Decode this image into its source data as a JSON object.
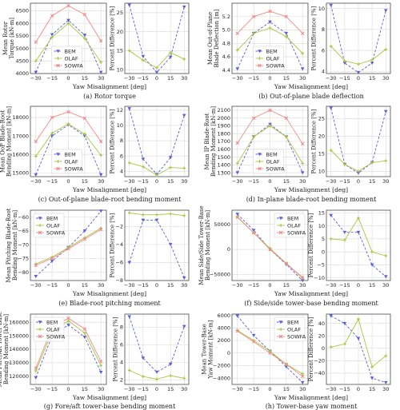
{
  "colors": {
    "BEM": "#5a5fd6",
    "OLAF": "#a9c640",
    "SOWFA": "#f08a8a",
    "grid": "#d9d9d9"
  },
  "series_names": [
    "BEM",
    "OLAF",
    "SOWFA"
  ],
  "x_label": "Yaw Misalignment [deg]",
  "chart_data": [
    {
      "id": "a",
      "caption": "(a) Rotor torque",
      "left": {
        "type": "line",
        "ylabel": [
          "Mean Rotor",
          "Torque [kN-m]"
        ],
        "x": [
          -30,
          -15,
          0,
          15,
          30
        ],
        "xticks": [
          -30,
          -15,
          0,
          15,
          30
        ],
        "ylim": [
          4000,
          6800
        ],
        "yticks": [
          4000,
          4500,
          5000,
          5500,
          6000,
          6500
        ],
        "ytick_labels": [
          "4000",
          "4500",
          "5000",
          "5500",
          "6000",
          "6500"
        ],
        "legend": "lower-center",
        "series": [
          {
            "name": "BEM",
            "values": [
              4050,
              5550,
              6120,
              5530,
              4050
            ]
          },
          {
            "name": "OLAF",
            "values": [
              4500,
              5450,
              6000,
              5400,
              4450
            ]
          },
          {
            "name": "SOWFA",
            "values": [
              5250,
              6300,
              6700,
              6350,
              5300
            ]
          }
        ]
      },
      "right": {
        "type": "line",
        "ylabel": [
          "Percent Difference [%]"
        ],
        "x": [
          -30,
          -15,
          0,
          15,
          30
        ],
        "xticks": [
          -30,
          -15,
          0,
          15,
          30
        ],
        "ylim": [
          9,
          27.5
        ],
        "yticks": [
          10,
          15,
          20,
          25
        ],
        "ytick_labels": [
          "10",
          "15",
          "20",
          "25"
        ],
        "series": [
          {
            "name": "BEM",
            "values": [
              27,
              13.5,
              9.3,
              13.3,
              26.5
            ]
          },
          {
            "name": "OLAF",
            "values": [
              15,
              12.5,
              10.5,
              14.5,
              12.8
            ]
          }
        ]
      }
    },
    {
      "id": "b",
      "caption": "(b) Out-of-plane blade deflection",
      "left": {
        "type": "line",
        "ylabel": [
          "Mean Out-of-Plane",
          "Blade Deflection [m]"
        ],
        "x": [
          -30,
          -15,
          0,
          15,
          30
        ],
        "xticks": [
          -30,
          -15,
          0,
          15,
          30
        ],
        "ylim": [
          4.35,
          5.4
        ],
        "yticks": [
          4.4,
          4.6,
          4.8,
          5.0,
          5.2
        ],
        "ytick_labels": [
          "4.4",
          "4.6",
          "4.8",
          "5.0",
          "5.2"
        ],
        "legend": "lower-center",
        "series": [
          {
            "name": "BEM",
            "values": [
              4.42,
              4.95,
              5.12,
              4.95,
              4.42
            ]
          },
          {
            "name": "OLAF",
            "values": [
              4.7,
              4.95,
              5.03,
              4.9,
              4.65
            ]
          },
          {
            "name": "SOWFA",
            "values": [
              4.95,
              5.2,
              5.28,
              5.2,
              4.95
            ]
          }
        ]
      },
      "right": {
        "type": "line",
        "ylabel": [
          "Percent Difference [%]"
        ],
        "x": [
          -30,
          -15,
          0,
          15,
          30
        ],
        "xticks": [
          -30,
          -15,
          0,
          15,
          30
        ],
        "ylim": [
          3.8,
          10.5
        ],
        "yticks": [
          4,
          6,
          8,
          10
        ],
        "ytick_labels": [
          "4",
          "6",
          "8",
          "10"
        ],
        "series": [
          {
            "name": "BEM",
            "values": [
              10.3,
              4.8,
              3.9,
              4.8,
              9.8
            ]
          },
          {
            "name": "OLAF",
            "values": [
              6.4,
              5.0,
              4.7,
              5.1,
              6.1
            ]
          }
        ]
      }
    },
    {
      "id": "c",
      "caption": "(c) Out-of-plane blade-root bending moment",
      "left": {
        "type": "line",
        "ylabel": [
          "Mean OoP Blade-Root",
          "Bending Moment [kN-m]"
        ],
        "x": [
          -30,
          -15,
          0,
          15,
          30
        ],
        "xticks": [
          -30,
          -15,
          0,
          15,
          30
        ],
        "ylim": [
          14800,
          18600
        ],
        "yticks": [
          15000,
          16000,
          17000,
          18000
        ],
        "ytick_labels": [
          "15000",
          "16000",
          "17000",
          "18000"
        ],
        "legend": "lower-center",
        "series": [
          {
            "name": "BEM",
            "values": [
              14900,
              17000,
              17600,
              17000,
              14900
            ]
          },
          {
            "name": "OLAF",
            "values": [
              15900,
              17150,
              17650,
              17100,
              15950
            ]
          },
          {
            "name": "SOWFA",
            "values": [
              16700,
              18000,
              18300,
              17950,
              16700
            ]
          }
        ]
      },
      "right": {
        "type": "line",
        "ylabel": [
          "Percent Difference [%]"
        ],
        "x": [
          -30,
          -15,
          0,
          15,
          30
        ],
        "xticks": [
          -30,
          -15,
          0,
          15,
          30
        ],
        "ylim": [
          3.3,
          12.5
        ],
        "yticks": [
          4,
          6,
          8,
          10,
          12
        ],
        "ytick_labels": [
          "4",
          "6",
          "8",
          "10",
          "12"
        ],
        "series": [
          {
            "name": "BEM",
            "values": [
              12.2,
              5.6,
              3.6,
              5.8,
              11.3
            ]
          },
          {
            "name": "OLAF",
            "values": [
              5.1,
              4.6,
              3.5,
              4.5,
              4.4
            ]
          }
        ]
      }
    },
    {
      "id": "d",
      "caption": "(d) In-plane blade-root bending moment",
      "left": {
        "type": "line",
        "ylabel": [
          "Mean IP Blade-Root",
          "Bending Moment [kN-m]"
        ],
        "x": [
          -30,
          -15,
          0,
          15,
          30
        ],
        "xticks": [
          -30,
          -15,
          0,
          15,
          30
        ],
        "ylim": [
          1250,
          2150
        ],
        "yticks": [
          1300,
          1400,
          1500,
          1600,
          1700,
          1800,
          1900,
          2000,
          2100
        ],
        "ytick_labels": [
          "1300",
          "1400",
          "1500",
          "1600",
          "1700",
          "1800",
          "1900",
          "2000",
          "2100"
        ],
        "legend": "lower-center",
        "series": [
          {
            "name": "BEM",
            "values": [
              1300,
              1760,
              1920,
              1760,
              1300
            ]
          },
          {
            "name": "OLAF",
            "values": [
              1420,
              1760,
              1900,
              1760,
              1420
            ]
          },
          {
            "name": "SOWFA",
            "values": [
              1680,
              2000,
              2100,
              2000,
              1670
            ]
          }
        ]
      },
      "right": {
        "type": "line",
        "ylabel": [
          "Percent Difference [%]"
        ],
        "x": [
          -30,
          -15,
          0,
          15,
          30
        ],
        "xticks": [
          -30,
          -15,
          0,
          15,
          30
        ],
        "ylim": [
          8.5,
          28.5
        ],
        "yticks": [
          10,
          15,
          20,
          25
        ],
        "ytick_labels": [
          "10",
          "15",
          "20",
          "25"
        ],
        "series": [
          {
            "name": "BEM",
            "values": [
              28,
              12,
              9.5,
              12.5,
              27
            ]
          },
          {
            "name": "OLAF",
            "values": [
              16,
              12,
              10,
              12.5,
              13
            ]
          }
        ]
      }
    },
    {
      "id": "e",
      "caption": "(e) Blade-root pitching moment",
      "left": {
        "type": "line",
        "ylabel": [
          "Mean Pitching Blade-Root",
          "Bending Moment [kN-m]"
        ],
        "x": [
          -30,
          -15,
          0,
          15,
          30
        ],
        "xticks": [
          -30,
          -15,
          0,
          15,
          30
        ],
        "ylim": [
          -83,
          -57.5
        ],
        "yticks": [
          -80,
          -75,
          -70,
          -65,
          -60
        ],
        "ytick_labels": [
          "−80",
          "−75",
          "−70",
          "−65",
          "−60"
        ],
        "legend": "upper-left",
        "series": [
          {
            "name": "BEM",
            "values": [
              -81.5,
              -76,
              -71,
              -65,
              -57.8
            ]
          },
          {
            "name": "OLAF",
            "values": [
              -77,
              -74.5,
              -71,
              -67.5,
              -64
            ]
          },
          {
            "name": "SOWFA",
            "values": [
              -77.5,
              -75,
              -71.5,
              -68,
              -64.5
            ]
          }
        ]
      },
      "right": {
        "type": "line",
        "ylabel": [
          "Percent Difference [%]"
        ],
        "x": [
          -30,
          -15,
          0,
          15,
          30
        ],
        "xticks": [
          -30,
          -15,
          0,
          15,
          30
        ],
        "ylim": [
          -8,
          -0.2
        ],
        "yticks": [
          -8,
          -6,
          -4,
          -2
        ],
        "ytick_labels": [
          "−8",
          "−6",
          "−4",
          "−2"
        ],
        "series": [
          {
            "name": "BEM",
            "values": [
              -6,
              -1.3,
              -1.3,
              -4,
              -7.7
            ]
          },
          {
            "name": "OLAF",
            "values": [
              -0.5,
              -0.7,
              -0.7,
              -0.6,
              -0.8
            ]
          }
        ]
      }
    },
    {
      "id": "f",
      "caption": "(f) Side/side tower-base bending moment",
      "left": {
        "type": "line",
        "ylabel": [
          "Mean Side/Side Tower-Base",
          "Bending Moment [kN-m]"
        ],
        "x": [
          -30,
          -15,
          0,
          15,
          30
        ],
        "xticks": [
          -30,
          -15,
          0,
          15,
          30
        ],
        "ylim": [
          -62000,
          78000
        ],
        "yticks": [
          -50000,
          0,
          50000
        ],
        "ytick_labels": [
          "−50000",
          "0",
          "50000"
        ],
        "legend": "upper-right",
        "series": [
          {
            "name": "BEM",
            "values": [
              70000,
              38000,
              0,
              -30000,
              -62000
            ]
          },
          {
            "name": "OLAF",
            "values": [
              65000,
              33000,
              2000,
              -28000,
              -57000
            ]
          },
          {
            "name": "SOWFA",
            "values": [
              64000,
              33000,
              0,
              -28000,
              -56000
            ]
          }
        ]
      },
      "right": {
        "type": "line",
        "ylabel": [
          "Percent Difference [%]"
        ],
        "x": [
          -30,
          -15,
          0,
          15,
          30
        ],
        "xticks": [
          -30,
          -15,
          0,
          15,
          30
        ],
        "ylim": [
          -11,
          16
        ],
        "yticks": [
          -10,
          -5,
          0,
          5,
          10,
          15
        ],
        "ytick_labels": [
          "−10",
          "−5",
          "0",
          "5",
          "10",
          "15"
        ],
        "series": [
          {
            "name": "BEM",
            "values": [
              14,
              7.5,
              7.5,
              -5,
              -9.5
            ]
          },
          {
            "name": "OLAF",
            "values": [
              5,
              4.5,
              13,
              0,
              -1.5
            ]
          }
        ]
      }
    },
    {
      "id": "g",
      "caption": "(g) Fore/aft tower-base bending moment",
      "left": {
        "type": "line",
        "ylabel": [
          "Mean Fore/Aft Tower-Base",
          "Bending Moment [kN-m]"
        ],
        "x": [
          -30,
          -15,
          0,
          15,
          30
        ],
        "xticks": [
          -30,
          -15,
          0,
          15,
          30
        ],
        "ylim": [
          114000,
          166000
        ],
        "yticks": [
          120000,
          130000,
          140000,
          150000,
          160000
        ],
        "ytick_labels": [
          "120000",
          "130000",
          "140000",
          "150000",
          "160000"
        ],
        "legend": "upper-left",
        "series": [
          {
            "name": "BEM",
            "values": [
              119000,
              150000,
              158000,
              149000,
              123000
            ]
          },
          {
            "name": "OLAF",
            "values": [
              124000,
              153000,
              161000,
              152000,
              128000
            ]
          },
          {
            "name": "SOWFA",
            "values": [
              126000,
              156000,
              163000,
              155000,
              131000
            ]
          }
        ]
      },
      "right": {
        "type": "line",
        "ylabel": [
          "Percent Difference [%]"
        ],
        "x": [
          -30,
          -15,
          0,
          15,
          30
        ],
        "xticks": [
          -30,
          -15,
          0,
          15,
          30
        ],
        "ylim": [
          1.5,
          9.5
        ],
        "yticks": [
          2,
          4,
          6,
          8
        ],
        "ytick_labels": [
          "2",
          "4",
          "6",
          "8"
        ],
        "series": [
          {
            "name": "BEM",
            "values": [
              9.2,
              4.5,
              2.9,
              3.8,
              8.1
            ]
          },
          {
            "name": "OLAF",
            "values": [
              3.1,
              2.4,
              2.1,
              2.5,
              2.2
            ]
          }
        ]
      }
    },
    {
      "id": "h",
      "caption": "(h) Tower-base yaw moment",
      "left": {
        "type": "line",
        "ylabel": [
          "Mean Tower-Base",
          "Yaw Moment [kN-m]"
        ],
        "x": [
          -30,
          -15,
          0,
          15,
          30
        ],
        "xticks": [
          -30,
          -15,
          0,
          15,
          30
        ],
        "ylim": [
          -5000,
          6200
        ],
        "yticks": [
          -4000,
          -2000,
          0,
          2000,
          4000,
          6000
        ],
        "ytick_labels": [
          "−4000",
          "−2000",
          "0",
          "2000",
          "4000",
          "6000"
        ],
        "legend": "upper-right",
        "series": [
          {
            "name": "BEM",
            "values": [
              5900,
              2800,
              300,
              -2200,
              -4700
            ]
          },
          {
            "name": "OLAF",
            "values": [
              3600,
              2000,
              300,
              -1800,
              -3300
            ]
          },
          {
            "name": "SOWFA",
            "values": [
              3500,
              1800,
              0,
              -1800,
              -3700
            ]
          }
        ]
      },
      "right": {
        "type": "line",
        "ylabel": [
          "Percent Difference [%]"
        ],
        "x": [
          -30,
          -15,
          0,
          15,
          30
        ],
        "xticks": [
          -30,
          -15,
          0,
          15,
          30
        ],
        "ylim": [
          -58,
          55
        ],
        "yticks": [
          -40,
          -20,
          0,
          20,
          40
        ],
        "ytick_labels": [
          "−40",
          "−20",
          "0",
          "20",
          "40"
        ],
        "series": [
          {
            "name": "BEM",
            "values": [
              52,
              40,
              16,
              -48,
              -55
            ]
          },
          {
            "name": "OLAF",
            "values": [
              2,
              7,
              47,
              -30,
              -12
            ]
          }
        ]
      }
    }
  ]
}
